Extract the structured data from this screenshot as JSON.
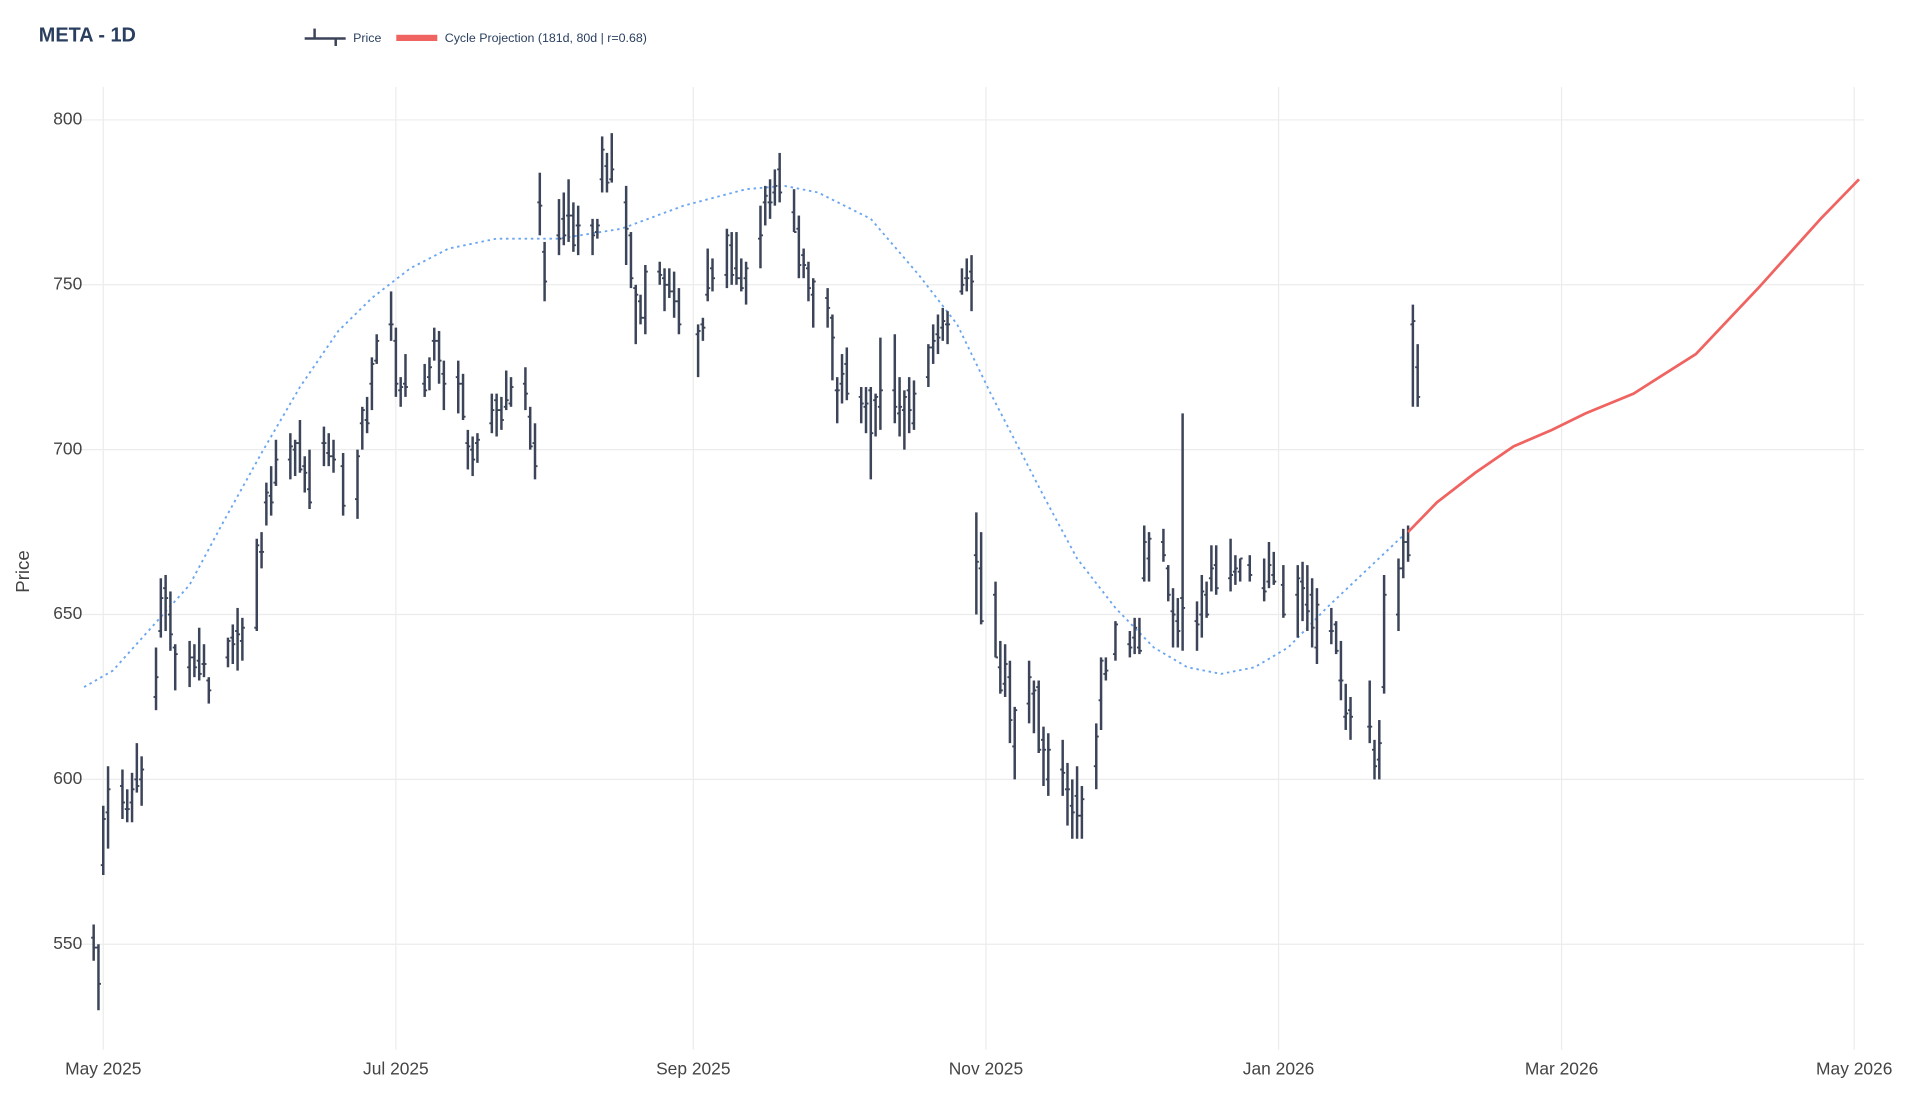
{
  "chart_data": {
    "type": "ohlc",
    "title": "META - 1D",
    "y_label": "Price",
    "xlim": [
      -8,
      367
    ],
    "ylim": [
      518,
      810
    ],
    "xticks": [
      {
        "value": 0,
        "label": "May 2025"
      },
      {
        "value": 61,
        "label": "Jul 2025"
      },
      {
        "value": 123,
        "label": "Sep 2025"
      },
      {
        "value": 184,
        "label": "Nov 2025"
      },
      {
        "value": 245,
        "label": "Jan 2026"
      },
      {
        "value": 304,
        "label": "Mar 2026"
      },
      {
        "value": 365,
        "label": "May 2026"
      }
    ],
    "yticks": [
      550,
      600,
      650,
      700,
      750,
      800
    ],
    "grid": true,
    "x": [
      -2,
      -1,
      0,
      1,
      4,
      5,
      6,
      7,
      8,
      11,
      12,
      13,
      14,
      15,
      18,
      19,
      20,
      21,
      22,
      26,
      27,
      28,
      29,
      32,
      33,
      34,
      35,
      36,
      39,
      40,
      41,
      42,
      43,
      46,
      47,
      48,
      50,
      53,
      54,
      55,
      56,
      57,
      60,
      61,
      62,
      63,
      67,
      68,
      69,
      70,
      71,
      74,
      75,
      76,
      77,
      78,
      81,
      82,
      83,
      84,
      85,
      88,
      89,
      90,
      91,
      92,
      95,
      96,
      97,
      98,
      99,
      102,
      103,
      104,
      105,
      106,
      109,
      110,
      111,
      112,
      113,
      116,
      117,
      118,
      119,
      120,
      124,
      125,
      126,
      127,
      130,
      131,
      132,
      133,
      134,
      137,
      138,
      139,
      140,
      141,
      144,
      145,
      146,
      147,
      148,
      151,
      152,
      153,
      154,
      155,
      158,
      159,
      160,
      161,
      162,
      165,
      166,
      167,
      168,
      169,
      172,
      173,
      174,
      175,
      176,
      179,
      180,
      181,
      182,
      183,
      186,
      187,
      188,
      189,
      190,
      193,
      194,
      195,
      196,
      197,
      200,
      201,
      202,
      203,
      204,
      207,
      208,
      209,
      211,
      214,
      215,
      216,
      217,
      218,
      221,
      222,
      223,
      224,
      225,
      228,
      229,
      230,
      231,
      232,
      235,
      236,
      237,
      239,
      242,
      243,
      244,
      246,
      249,
      250,
      251,
      252,
      253,
      256,
      257,
      258,
      259,
      260,
      264,
      265,
      266,
      267,
      270,
      271,
      272,
      273,
      274
    ],
    "series": [
      {
        "name": "Price",
        "type": "ohlc",
        "color": "#3b4458",
        "open": [
          552,
          549,
          574,
          590,
          598,
          591,
          593,
          600,
          600,
          625,
          645,
          658,
          650,
          640,
          634,
          637,
          636,
          635,
          630,
          637,
          643,
          645,
          642,
          646,
          669,
          684,
          686,
          690,
          697,
          700,
          702,
          695,
          688,
          702,
          699,
          698,
          695,
          685,
          708,
          709,
          720,
          727,
          738,
          733,
          718,
          720,
          720,
          722,
          733,
          733,
          723,
          722,
          720,
          702,
          700,
          702,
          708,
          715,
          712,
          713,
          714,
          720,
          710,
          702,
          775,
          760,
          765,
          770,
          771,
          771,
          768,
          768,
          766,
          782,
          786,
          782,
          775,
          765,
          749,
          745,
          740,
          754,
          752,
          750,
          748,
          745,
          735,
          738,
          747,
          755,
          753,
          762,
          755,
          752,
          752,
          764,
          775,
          775,
          778,
          785,
          772,
          767,
          759,
          755,
          747,
          746,
          740,
          718,
          720,
          726,
          716,
          713,
          718,
          715,
          713,
          718,
          711,
          712,
          718,
          708,
          722,
          731,
          735,
          737,
          738,
          748,
          752,
          754,
          668,
          664,
          656,
          634,
          629,
          631,
          610,
          623,
          626,
          628,
          612,
          600,
          603,
          597,
          592,
          595,
          589,
          604,
          624,
          632,
          638,
          641,
          643,
          640,
          661,
          667,
          672,
          664,
          651,
          648,
          655,
          648,
          650,
          656,
          661,
          665,
          661,
          663,
          663,
          665,
          658,
          660,
          662,
          659,
          656,
          660,
          653,
          656,
          640,
          645,
          647,
          630,
          619,
          621,
          616,
          609,
          606,
          628,
          650,
          664,
          672,
          738,
          725
        ],
        "high": [
          556,
          550,
          592,
          604,
          603,
          597,
          602,
          611,
          607,
          640,
          661,
          662,
          657,
          641,
          642,
          641,
          646,
          641,
          631,
          643,
          647,
          652,
          649,
          673,
          675,
          690,
          695,
          703,
          705,
          703,
          709,
          698,
          700,
          707,
          705,
          703,
          699,
          700,
          713,
          716,
          728,
          735,
          748,
          737,
          722,
          729,
          726,
          728,
          737,
          736,
          727,
          727,
          723,
          706,
          704,
          705,
          717,
          717,
          716,
          724,
          722,
          725,
          713,
          708,
          784,
          763,
          776,
          778,
          782,
          775,
          774,
          770,
          770,
          795,
          790,
          796,
          780,
          766,
          750,
          747,
          756,
          757,
          755,
          755,
          754,
          749,
          738,
          740,
          761,
          758,
          767,
          766,
          766,
          758,
          757,
          774,
          780,
          782,
          785,
          790,
          779,
          771,
          761,
          757,
          752,
          749,
          741,
          722,
          729,
          731,
          719,
          719,
          719,
          717,
          734,
          735,
          722,
          718,
          722,
          721,
          732,
          738,
          741,
          743,
          742,
          755,
          758,
          759,
          681,
          675,
          660,
          642,
          641,
          636,
          622,
          636,
          630,
          630,
          616,
          614,
          612,
          605,
          600,
          604,
          598,
          617,
          637,
          637,
          648,
          645,
          649,
          649,
          677,
          675,
          676,
          665,
          658,
          655,
          711,
          654,
          662,
          660,
          671,
          671,
          673,
          668,
          667,
          668,
          667,
          672,
          669,
          665,
          665,
          666,
          665,
          661,
          658,
          652,
          648,
          642,
          629,
          625,
          630,
          612,
          618,
          662,
          667,
          676,
          677,
          744,
          732
        ],
        "low": [
          545,
          530,
          571,
          579,
          588,
          587,
          587,
          596,
          592,
          621,
          643,
          645,
          639,
          627,
          628,
          631,
          630,
          631,
          623,
          634,
          635,
          633,
          636,
          645,
          664,
          677,
          680,
          689,
          691,
          692,
          693,
          687,
          682,
          695,
          695,
          693,
          680,
          679,
          700,
          705,
          712,
          726,
          733,
          716,
          713,
          716,
          716,
          718,
          727,
          720,
          712,
          711,
          709,
          694,
          692,
          696,
          705,
          704,
          706,
          712,
          713,
          712,
          700,
          691,
          765,
          745,
          759,
          762,
          763,
          760,
          759,
          759,
          764,
          778,
          778,
          781,
          756,
          749,
          732,
          738,
          735,
          750,
          742,
          746,
          740,
          735,
          722,
          733,
          745,
          748,
          749,
          750,
          750,
          748,
          744,
          755,
          768,
          770,
          774,
          775,
          766,
          752,
          752,
          745,
          737,
          737,
          721,
          708,
          714,
          715,
          708,
          705,
          691,
          704,
          706,
          708,
          704,
          700,
          705,
          706,
          719,
          726,
          729,
          733,
          732,
          747,
          748,
          742,
          650,
          647,
          637,
          626,
          625,
          611,
          600,
          617,
          614,
          608,
          598,
          595,
          595,
          586,
          582,
          582,
          582,
          597,
          615,
          630,
          636,
          637,
          638,
          638,
          660,
          660,
          666,
          654,
          640,
          640,
          639,
          639,
          643,
          649,
          657,
          656,
          657,
          659,
          660,
          660,
          654,
          658,
          659,
          649,
          643,
          648,
          645,
          640,
          635,
          641,
          638,
          624,
          615,
          612,
          611,
          600,
          600,
          626,
          645,
          661,
          666,
          713,
          713
        ],
        "close": [
          549,
          538,
          588,
          597,
          593,
          591,
          597,
          598,
          603,
          631,
          655,
          655,
          644,
          638,
          637,
          634,
          632,
          635,
          627,
          642,
          641,
          644,
          646,
          671,
          669,
          687,
          684,
          697,
          701,
          702,
          694,
          693,
          684,
          702,
          698,
          697,
          683,
          698,
          712,
          708,
          726,
          733,
          738,
          720,
          719,
          719,
          718,
          725,
          733,
          727,
          720,
          720,
          710,
          701,
          697,
          703,
          712,
          712,
          709,
          715,
          719,
          717,
          701,
          695,
          774,
          751,
          764,
          765,
          771,
          762,
          768,
          765,
          768,
          791,
          781,
          785,
          767,
          752,
          747,
          740,
          754,
          753,
          750,
          748,
          745,
          738,
          736,
          737,
          749,
          752,
          765,
          753,
          752,
          749,
          755,
          765,
          777,
          775,
          780,
          778,
          766,
          756,
          756,
          749,
          751,
          743,
          734,
          718,
          723,
          717,
          714,
          714,
          705,
          716,
          718,
          713,
          713,
          716,
          712,
          717,
          731,
          733,
          734,
          739,
          738,
          750,
          752,
          751,
          666,
          648,
          637,
          627,
          635,
          618,
          621,
          631,
          627,
          609,
          609,
          609,
          602,
          597,
          590,
          589,
          594,
          613,
          636,
          633,
          647,
          640,
          646,
          639,
          672,
          673,
          668,
          656,
          650,
          645,
          652,
          647,
          657,
          650,
          664,
          658,
          662,
          664,
          667,
          662,
          657,
          665,
          660,
          650,
          661,
          658,
          651,
          646,
          653,
          645,
          639,
          630,
          620,
          619,
          616,
          604,
          611,
          656,
          664,
          672,
          668,
          739,
          716
        ]
      },
      {
        "name": "Cycle Projection (181d, 80d | r=0.68)",
        "type": "line",
        "color": "#ef6461",
        "x": [
          272,
          278,
          286,
          294,
          302,
          309,
          319,
          332,
          345,
          358,
          366
        ],
        "values": [
          675,
          684,
          693,
          701,
          706,
          711,
          717,
          729,
          749,
          770,
          782
        ]
      }
    ],
    "fit": {
      "color": "#6aa5f0",
      "dash": true,
      "x": [
        -4,
        2,
        10,
        18,
        25,
        33,
        41,
        49,
        56,
        64,
        72,
        82,
        95,
        108,
        121,
        134,
        142,
        149,
        160,
        170,
        178,
        185,
        196,
        203,
        211,
        219,
        226,
        233,
        240,
        247,
        255,
        263,
        271
      ],
      "values": [
        628,
        633,
        646,
        659,
        678,
        699,
        719,
        736,
        746,
        755,
        761,
        764,
        764,
        767,
        774,
        779,
        780,
        778,
        770,
        753,
        738,
        717,
        686,
        667,
        652,
        640,
        634,
        632,
        634,
        640,
        652,
        663,
        674
      ]
    }
  }
}
